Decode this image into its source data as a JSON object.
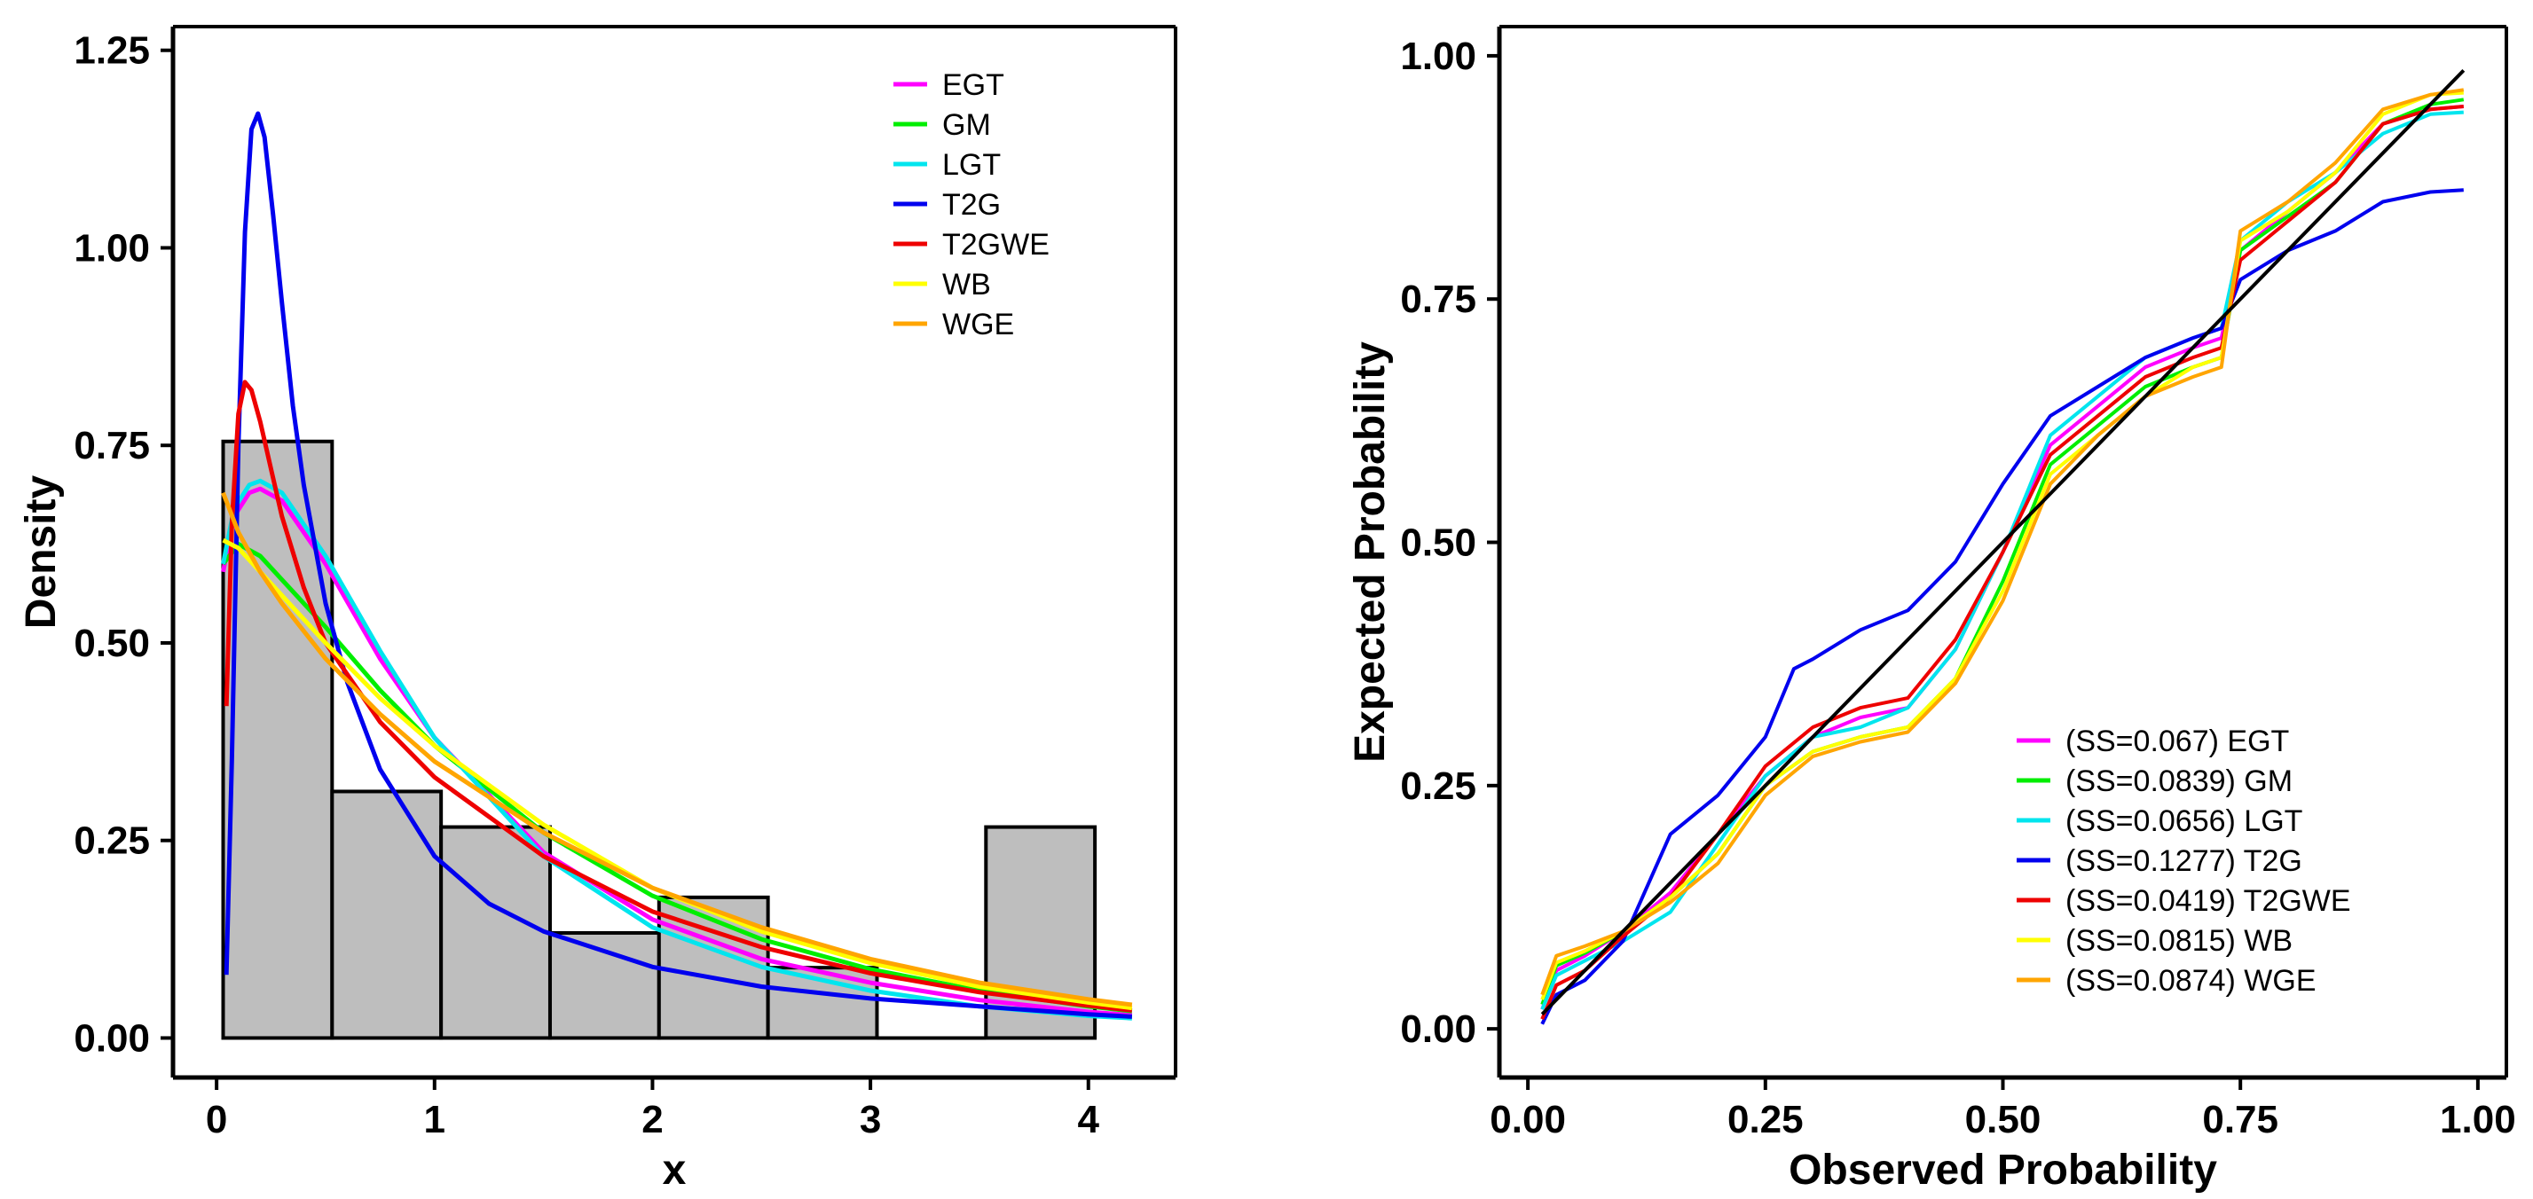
{
  "chart_data": [
    {
      "type": "histogram-density",
      "xlabel": "x",
      "ylabel": "Density",
      "xlim": [
        -0.2,
        4.4
      ],
      "ylim": [
        -0.05,
        1.28
      ],
      "x_ticks": [
        "0",
        "1",
        "2",
        "3",
        "4"
      ],
      "y_ticks": [
        "0.00",
        "0.25",
        "0.50",
        "0.75",
        "1.00",
        "1.25"
      ],
      "histogram": {
        "bins": [
          [
            0.03,
            0.53
          ],
          [
            0.53,
            1.03
          ],
          [
            1.03,
            1.53
          ],
          [
            1.53,
            2.03
          ],
          [
            2.03,
            2.53
          ],
          [
            2.53,
            3.03
          ],
          [
            3.03,
            3.53
          ],
          [
            3.53,
            4.03
          ]
        ],
        "density": [
          0.755,
          0.312,
          0.267,
          0.133,
          0.178,
          0.089,
          0.0,
          0.267
        ],
        "fill": "#bebebe"
      },
      "series": [
        {
          "name": "EGT",
          "color": "#ff00ff",
          "x": [
            0.03,
            0.08,
            0.15,
            0.2,
            0.3,
            0.5,
            0.75,
            1.0,
            1.5,
            2.0,
            2.5,
            3.0,
            3.5,
            4.0,
            4.2
          ],
          "y": [
            0.59,
            0.66,
            0.69,
            0.695,
            0.68,
            0.6,
            0.48,
            0.38,
            0.235,
            0.15,
            0.1,
            0.07,
            0.048,
            0.033,
            0.029
          ]
        },
        {
          "name": "GM",
          "color": "#00ee00",
          "x": [
            0.03,
            0.1,
            0.2,
            0.3,
            0.5,
            0.75,
            1.0,
            1.5,
            2.0,
            2.5,
            3.0,
            3.5,
            4.0,
            4.2
          ],
          "y": [
            0.6,
            0.625,
            0.61,
            0.58,
            0.52,
            0.44,
            0.37,
            0.26,
            0.18,
            0.125,
            0.087,
            0.06,
            0.04,
            0.034
          ]
        },
        {
          "name": "LGT",
          "color": "#00e5ee",
          "x": [
            0.03,
            0.08,
            0.15,
            0.2,
            0.3,
            0.5,
            0.75,
            1.0,
            1.5,
            2.0,
            2.5,
            3.0,
            3.5,
            4.0,
            4.2
          ],
          "y": [
            0.6,
            0.67,
            0.7,
            0.705,
            0.69,
            0.61,
            0.49,
            0.38,
            0.23,
            0.14,
            0.09,
            0.06,
            0.04,
            0.028,
            0.025
          ]
        },
        {
          "name": "T2G",
          "color": "#0000ee",
          "x": [
            0.045,
            0.07,
            0.1,
            0.13,
            0.16,
            0.19,
            0.22,
            0.26,
            0.3,
            0.35,
            0.4,
            0.5,
            0.6,
            0.75,
            1.0,
            1.25,
            1.5,
            2.0,
            2.5,
            3.0,
            3.5,
            4.0,
            4.2
          ],
          "y": [
            0.08,
            0.35,
            0.75,
            1.02,
            1.15,
            1.17,
            1.14,
            1.04,
            0.93,
            0.8,
            0.7,
            0.55,
            0.45,
            0.34,
            0.23,
            0.17,
            0.135,
            0.09,
            0.065,
            0.05,
            0.04,
            0.03,
            0.027
          ]
        },
        {
          "name": "T2GWE",
          "color": "#ee0000",
          "x": [
            0.045,
            0.07,
            0.1,
            0.13,
            0.16,
            0.2,
            0.25,
            0.3,
            0.4,
            0.5,
            0.75,
            1.0,
            1.5,
            2.0,
            2.5,
            3.0,
            3.5,
            4.0,
            4.2
          ],
          "y": [
            0.42,
            0.65,
            0.79,
            0.83,
            0.82,
            0.78,
            0.72,
            0.66,
            0.57,
            0.5,
            0.4,
            0.33,
            0.23,
            0.16,
            0.115,
            0.082,
            0.058,
            0.041,
            0.035
          ]
        },
        {
          "name": "WB",
          "color": "#ffff00",
          "x": [
            0.03,
            0.1,
            0.2,
            0.3,
            0.5,
            0.75,
            1.0,
            1.5,
            2.0,
            2.5,
            3.0,
            3.5,
            4.0,
            4.2
          ],
          "y": [
            0.63,
            0.62,
            0.59,
            0.56,
            0.5,
            0.43,
            0.37,
            0.27,
            0.19,
            0.135,
            0.095,
            0.065,
            0.045,
            0.038
          ]
        },
        {
          "name": "WGE",
          "color": "#ffa500",
          "x": [
            0.03,
            0.1,
            0.2,
            0.3,
            0.5,
            0.75,
            1.0,
            1.5,
            2.0,
            2.5,
            3.0,
            3.5,
            4.0,
            4.2
          ],
          "y": [
            0.69,
            0.64,
            0.59,
            0.55,
            0.48,
            0.41,
            0.35,
            0.26,
            0.19,
            0.14,
            0.1,
            0.07,
            0.049,
            0.042
          ]
        }
      ]
    },
    {
      "type": "line",
      "xlabel": "Observed Probability",
      "ylabel": "Expected Probability",
      "xlim": [
        -0.03,
        1.03
      ],
      "ylim": [
        -0.05,
        1.03
      ],
      "x_ticks": [
        "0.00",
        "0.25",
        "0.50",
        "0.75",
        "1.00"
      ],
      "y_ticks": [
        "0.00",
        "0.25",
        "0.50",
        "0.75",
        "1.00"
      ],
      "reference_line": {
        "x": [
          0.015,
          0.985
        ],
        "y": [
          0.015,
          0.985
        ],
        "color": "#000000"
      },
      "series": [
        {
          "name": "EGT",
          "ss": "(SS=0.067) EGT",
          "color": "#ff00ff",
          "x": [
            0.015,
            0.03,
            0.06,
            0.1,
            0.15,
            0.2,
            0.25,
            0.3,
            0.35,
            0.4,
            0.45,
            0.5,
            0.55,
            0.6,
            0.65,
            0.7,
            0.73,
            0.75,
            0.8,
            0.85,
            0.9,
            0.95,
            0.985
          ],
          "y": [
            0.02,
            0.06,
            0.075,
            0.1,
            0.14,
            0.2,
            0.26,
            0.3,
            0.32,
            0.33,
            0.39,
            0.49,
            0.6,
            0.64,
            0.68,
            0.7,
            0.71,
            0.8,
            0.84,
            0.88,
            0.93,
            0.945,
            0.948
          ]
        },
        {
          "name": "GM",
          "ss": "(SS=0.0839) GM",
          "color": "#00ee00",
          "x": [
            0.015,
            0.03,
            0.06,
            0.1,
            0.15,
            0.2,
            0.25,
            0.3,
            0.35,
            0.4,
            0.45,
            0.5,
            0.55,
            0.6,
            0.65,
            0.7,
            0.73,
            0.75,
            0.8,
            0.85,
            0.9,
            0.95,
            0.985
          ],
          "y": [
            0.025,
            0.065,
            0.078,
            0.1,
            0.135,
            0.18,
            0.25,
            0.285,
            0.3,
            0.31,
            0.36,
            0.46,
            0.58,
            0.62,
            0.66,
            0.68,
            0.69,
            0.8,
            0.835,
            0.87,
            0.93,
            0.95,
            0.955
          ]
        },
        {
          "name": "LGT",
          "ss": "(SS=0.0656) LGT",
          "color": "#00e5ee",
          "x": [
            0.015,
            0.03,
            0.06,
            0.1,
            0.15,
            0.2,
            0.25,
            0.3,
            0.35,
            0.4,
            0.45,
            0.5,
            0.55,
            0.6,
            0.65,
            0.7,
            0.73,
            0.75,
            0.8,
            0.85,
            0.9,
            0.95,
            0.985
          ],
          "y": [
            0.02,
            0.055,
            0.07,
            0.09,
            0.12,
            0.19,
            0.26,
            0.3,
            0.31,
            0.33,
            0.39,
            0.49,
            0.61,
            0.65,
            0.69,
            0.71,
            0.72,
            0.81,
            0.85,
            0.88,
            0.92,
            0.94,
            0.942
          ]
        },
        {
          "name": "T2G",
          "ss": "(SS=0.1277) T2G",
          "color": "#0000ee",
          "x": [
            0.015,
            0.03,
            0.06,
            0.1,
            0.15,
            0.2,
            0.25,
            0.28,
            0.3,
            0.35,
            0.4,
            0.45,
            0.5,
            0.55,
            0.6,
            0.65,
            0.7,
            0.73,
            0.75,
            0.8,
            0.85,
            0.9,
            0.95,
            0.985
          ],
          "y": [
            0.005,
            0.035,
            0.05,
            0.09,
            0.2,
            0.24,
            0.3,
            0.37,
            0.38,
            0.41,
            0.43,
            0.48,
            0.56,
            0.63,
            0.66,
            0.69,
            0.71,
            0.72,
            0.77,
            0.8,
            0.82,
            0.85,
            0.86,
            0.862
          ]
        },
        {
          "name": "T2GWE",
          "ss": "(SS=0.0419) T2GWE",
          "color": "#ee0000",
          "x": [
            0.015,
            0.03,
            0.06,
            0.1,
            0.15,
            0.2,
            0.25,
            0.3,
            0.35,
            0.4,
            0.45,
            0.5,
            0.55,
            0.6,
            0.65,
            0.7,
            0.73,
            0.75,
            0.8,
            0.85,
            0.9,
            0.95,
            0.985
          ],
          "y": [
            0.01,
            0.045,
            0.06,
            0.095,
            0.135,
            0.2,
            0.27,
            0.31,
            0.33,
            0.34,
            0.4,
            0.49,
            0.59,
            0.63,
            0.67,
            0.69,
            0.7,
            0.79,
            0.83,
            0.87,
            0.93,
            0.945,
            0.948
          ]
        },
        {
          "name": "WB",
          "ss": "(SS=0.0815) WB",
          "color": "#ffff00",
          "x": [
            0.015,
            0.03,
            0.06,
            0.1,
            0.15,
            0.2,
            0.25,
            0.3,
            0.35,
            0.4,
            0.45,
            0.5,
            0.55,
            0.6,
            0.65,
            0.7,
            0.73,
            0.75,
            0.8,
            0.85,
            0.9,
            0.95,
            0.985
          ],
          "y": [
            0.03,
            0.068,
            0.08,
            0.1,
            0.135,
            0.18,
            0.25,
            0.285,
            0.3,
            0.31,
            0.36,
            0.45,
            0.57,
            0.61,
            0.65,
            0.68,
            0.69,
            0.81,
            0.84,
            0.88,
            0.94,
            0.96,
            0.962
          ]
        },
        {
          "name": "WGE",
          "ss": "(SS=0.0874) WGE",
          "color": "#ffa500",
          "x": [
            0.015,
            0.03,
            0.06,
            0.1,
            0.15,
            0.2,
            0.25,
            0.3,
            0.35,
            0.4,
            0.45,
            0.5,
            0.55,
            0.6,
            0.65,
            0.7,
            0.73,
            0.75,
            0.8,
            0.85,
            0.9,
            0.95,
            0.985
          ],
          "y": [
            0.035,
            0.075,
            0.085,
            0.1,
            0.13,
            0.17,
            0.24,
            0.28,
            0.295,
            0.305,
            0.355,
            0.44,
            0.56,
            0.61,
            0.65,
            0.67,
            0.68,
            0.82,
            0.85,
            0.89,
            0.945,
            0.96,
            0.965
          ]
        }
      ]
    }
  ]
}
